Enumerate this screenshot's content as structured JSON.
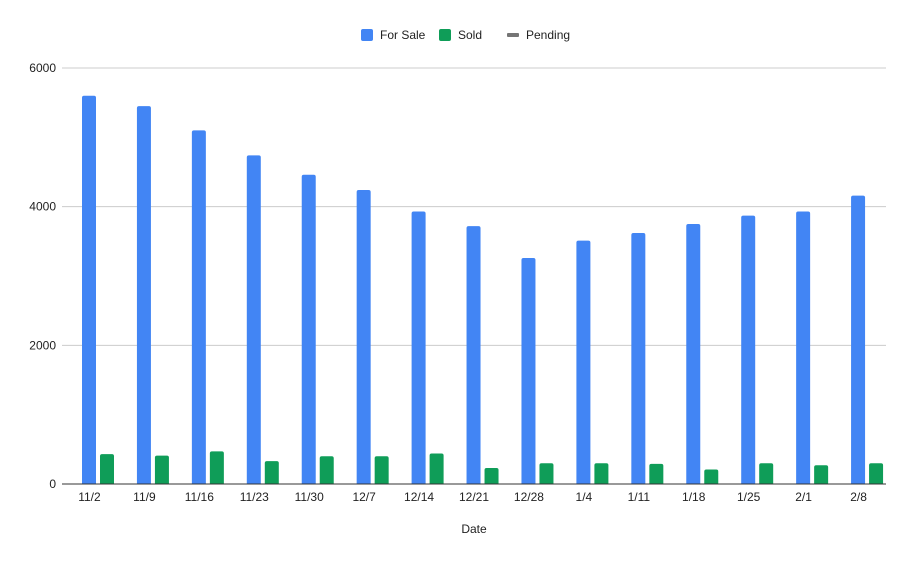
{
  "chart_data": {
    "type": "bar",
    "title": "",
    "xlabel": "Date",
    "ylabel": "",
    "categories": [
      "11/2",
      "11/9",
      "11/16",
      "11/23",
      "11/30",
      "12/7",
      "12/14",
      "12/21",
      "12/28",
      "1/4",
      "1/11",
      "1/18",
      "1/25",
      "2/1",
      "2/8"
    ],
    "series": [
      {
        "name": "For Sale",
        "color": "#4285f4",
        "values": [
          5600,
          5450,
          5100,
          4740,
          4460,
          4240,
          3930,
          3720,
          3260,
          3510,
          3620,
          3750,
          3870,
          3930,
          4160
        ]
      },
      {
        "name": "Sold",
        "color": "#0f9d58",
        "values": [
          430,
          410,
          470,
          330,
          400,
          400,
          440,
          230,
          300,
          300,
          290,
          210,
          300,
          270,
          300
        ]
      },
      {
        "name": "Pending",
        "color": "#757575",
        "values": [
          0,
          0,
          0,
          0,
          0,
          0,
          0,
          0,
          0,
          0,
          0,
          0,
          0,
          0,
          0
        ]
      }
    ],
    "ylim": [
      0,
      6000
    ],
    "yticks": [
      0,
      2000,
      4000,
      6000
    ],
    "grid": true,
    "legend": "top-center"
  }
}
